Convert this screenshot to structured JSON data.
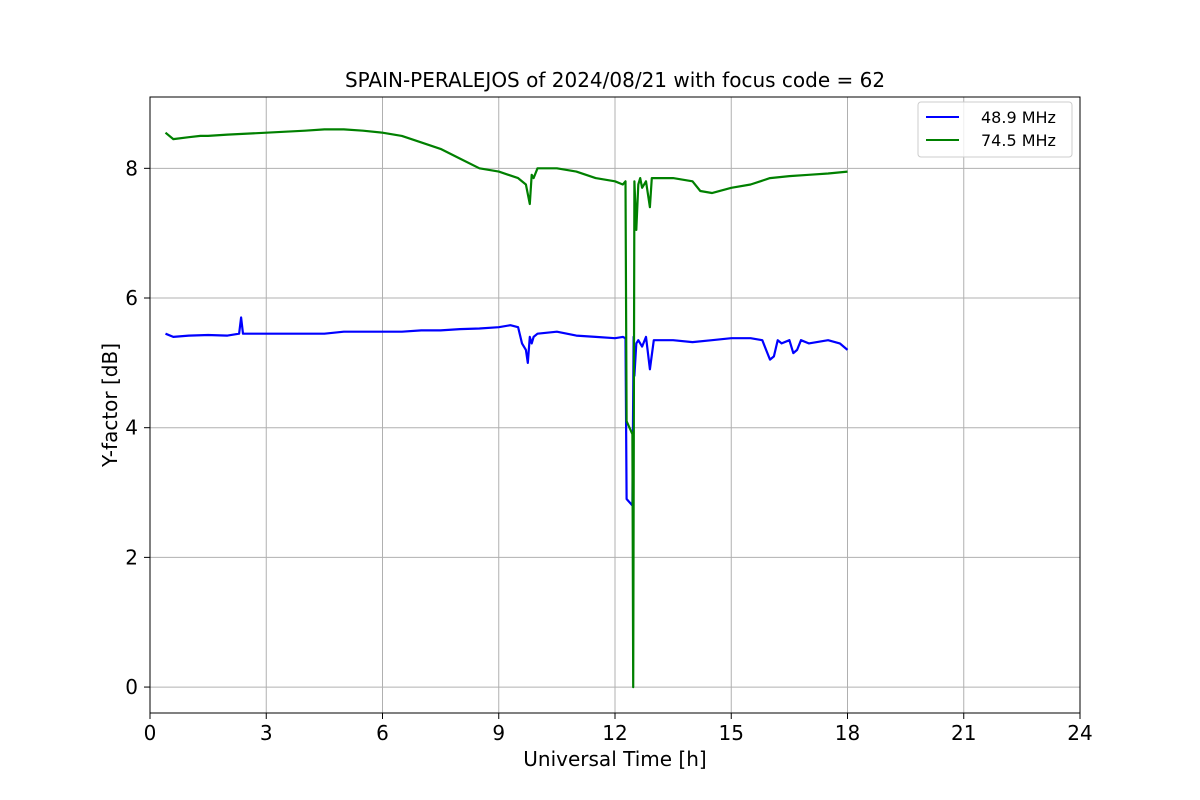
{
  "chart_data": {
    "type": "line",
    "title": "SPAIN-PERALEJOS of 2024/08/21 with focus code = 62",
    "xlabel": "Universal Time [h]",
    "ylabel": "Y-factor [dB]",
    "xlim": [
      0,
      24
    ],
    "ylim": [
      -0.4,
      9.1
    ],
    "xticks": [
      0,
      3,
      6,
      9,
      12,
      15,
      18,
      21,
      24
    ],
    "yticks": [
      0,
      2,
      4,
      6,
      8
    ],
    "grid": true,
    "legend_position": "top-right",
    "series": [
      {
        "name": "48.9 MHz",
        "color": "#0000ff",
        "x": [
          0.4,
          0.6,
          1.0,
          1.5,
          2.0,
          2.3,
          2.35,
          2.4,
          3.0,
          3.5,
          4.0,
          4.5,
          5.0,
          5.5,
          6.0,
          6.5,
          7.0,
          7.5,
          8.0,
          8.5,
          9.0,
          9.3,
          9.5,
          9.6,
          9.7,
          9.75,
          9.8,
          9.85,
          9.9,
          10.0,
          10.5,
          11.0,
          11.5,
          12.0,
          12.2,
          12.27,
          12.3,
          12.45,
          12.48,
          12.5,
          12.55,
          12.6,
          12.7,
          12.8,
          12.9,
          13.0,
          13.5,
          14.0,
          14.5,
          15.0,
          15.5,
          15.8,
          15.9,
          16.0,
          16.1,
          16.2,
          16.3,
          16.5,
          16.6,
          16.7,
          16.8,
          17.0,
          17.5,
          17.8,
          18.0
        ],
        "y": [
          5.45,
          5.4,
          5.42,
          5.43,
          5.42,
          5.45,
          5.7,
          5.45,
          5.45,
          5.45,
          5.45,
          5.45,
          5.48,
          5.48,
          5.48,
          5.48,
          5.5,
          5.5,
          5.52,
          5.53,
          5.55,
          5.58,
          5.55,
          5.3,
          5.2,
          5.0,
          5.4,
          5.3,
          5.4,
          5.45,
          5.48,
          5.42,
          5.4,
          5.38,
          5.4,
          5.38,
          2.9,
          2.8,
          5.4,
          4.8,
          5.3,
          5.35,
          5.25,
          5.4,
          4.9,
          5.35,
          5.35,
          5.32,
          5.35,
          5.38,
          5.38,
          5.35,
          5.2,
          5.05,
          5.1,
          5.35,
          5.3,
          5.35,
          5.15,
          5.2,
          5.35,
          5.3,
          5.35,
          5.3,
          5.2
        ]
      },
      {
        "name": "74.5 MHz",
        "color": "#008000",
        "x": [
          0.4,
          0.6,
          1.0,
          1.3,
          1.5,
          2.0,
          3.0,
          4.0,
          4.5,
          5.0,
          5.5,
          6.0,
          6.5,
          7.0,
          7.5,
          8.0,
          8.5,
          9.0,
          9.5,
          9.7,
          9.8,
          9.85,
          9.9,
          10.0,
          10.5,
          11.0,
          11.5,
          12.0,
          12.2,
          12.27,
          12.3,
          12.45,
          12.47,
          12.5,
          12.55,
          12.6,
          12.65,
          12.7,
          12.8,
          12.9,
          12.95,
          13.0,
          13.5,
          14.0,
          14.2,
          14.5,
          15.0,
          15.5,
          16.0,
          16.5,
          17.0,
          17.5,
          18.0
        ],
        "y": [
          8.55,
          8.45,
          8.48,
          8.5,
          8.5,
          8.52,
          8.55,
          8.58,
          8.6,
          8.6,
          8.58,
          8.55,
          8.5,
          8.4,
          8.3,
          8.15,
          8.0,
          7.95,
          7.85,
          7.75,
          7.45,
          7.9,
          7.85,
          8.0,
          8.0,
          7.95,
          7.85,
          7.8,
          7.75,
          7.8,
          4.1,
          3.9,
          0.0,
          7.8,
          7.05,
          7.75,
          7.85,
          7.7,
          7.8,
          7.4,
          7.85,
          7.85,
          7.85,
          7.8,
          7.65,
          7.62,
          7.7,
          7.75,
          7.85,
          7.88,
          7.9,
          7.92,
          7.95
        ]
      }
    ]
  }
}
